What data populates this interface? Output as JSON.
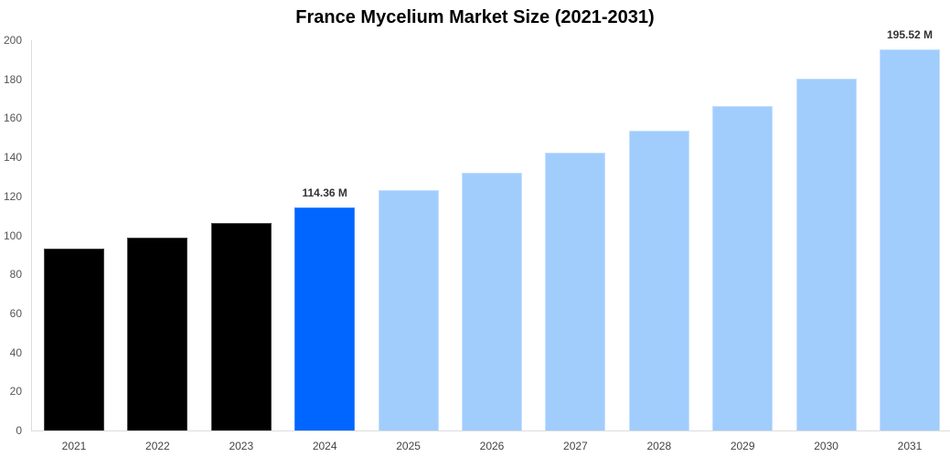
{
  "chart_data": {
    "type": "bar",
    "title": "France Mycelium Market Size (2021-2031)",
    "xlabel": "",
    "ylabel": "",
    "ylim": [
      0,
      200
    ],
    "yticks": [
      0,
      20,
      40,
      60,
      80,
      100,
      120,
      140,
      160,
      180,
      200
    ],
    "grid": false,
    "legend": null,
    "categories": [
      "2021",
      "2022",
      "2023",
      "2024",
      "2025",
      "2026",
      "2027",
      "2028",
      "2029",
      "2030",
      "2031"
    ],
    "values": [
      93.2,
      98.8,
      106.3,
      114.36,
      123.2,
      132.1,
      142.4,
      153.6,
      166.3,
      180.3,
      195.52
    ],
    "bar_types": [
      "historical",
      "historical",
      "historical",
      "current",
      "forecast",
      "forecast",
      "forecast",
      "forecast",
      "forecast",
      "forecast",
      "forecast"
    ],
    "data_labels": [
      {
        "category": "2024",
        "text": "114.36 M"
      },
      {
        "category": "2031",
        "text": "195.52 M"
      }
    ],
    "colors": {
      "historical": "#000000",
      "current": "#0066ff",
      "forecast": "#a1cdfd"
    }
  }
}
